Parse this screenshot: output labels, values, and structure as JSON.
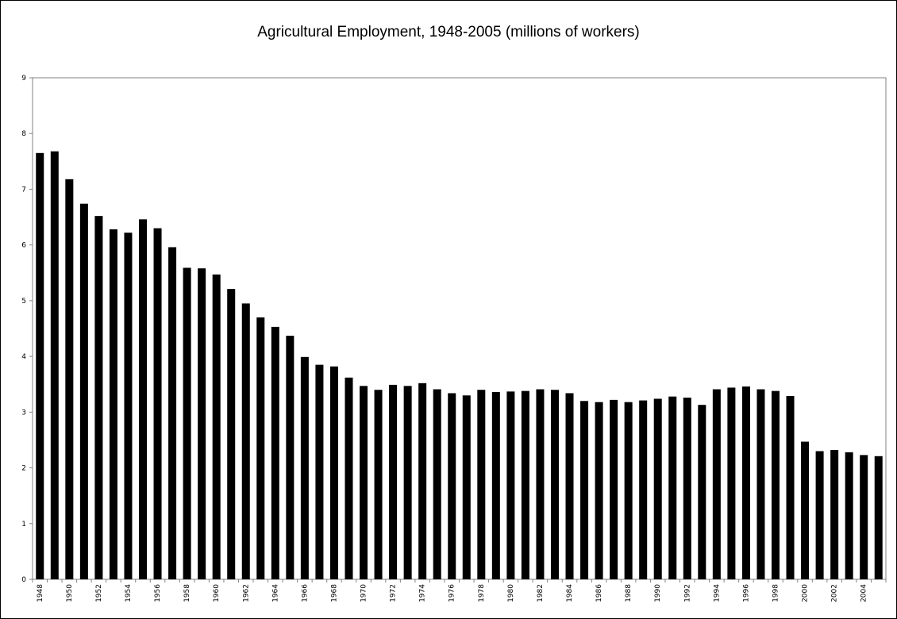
{
  "chart_data": {
    "type": "bar",
    "title": "Agricultural Employment, 1948-2005 (millions of workers)",
    "xlabel": "",
    "ylabel": "",
    "ylim": [
      0,
      9
    ],
    "yticks": [
      0,
      1,
      2,
      3,
      4,
      5,
      6,
      7,
      8,
      9
    ],
    "grid": false,
    "legend": "none",
    "bar_color": "#000000",
    "axis_color": "#808080",
    "categories": [
      1948,
      1949,
      1950,
      1951,
      1952,
      1953,
      1954,
      1955,
      1956,
      1957,
      1958,
      1959,
      1960,
      1961,
      1962,
      1963,
      1964,
      1965,
      1966,
      1967,
      1968,
      1969,
      1970,
      1971,
      1972,
      1973,
      1974,
      1975,
      1976,
      1977,
      1978,
      1979,
      1980,
      1981,
      1982,
      1983,
      1984,
      1985,
      1986,
      1987,
      1988,
      1989,
      1990,
      1991,
      1992,
      1993,
      1994,
      1995,
      1996,
      1997,
      1998,
      1999,
      2000,
      2001,
      2002,
      2003,
      2004,
      2005
    ],
    "xtick_labels": [
      1948,
      1950,
      1952,
      1954,
      1956,
      1958,
      1960,
      1962,
      1964,
      1966,
      1968,
      1970,
      1972,
      1974,
      1976,
      1978,
      1980,
      1982,
      1984,
      1986,
      1988,
      1990,
      1992,
      1994,
      1996,
      1998,
      2000,
      2002,
      2004
    ],
    "values": [
      7.65,
      7.68,
      7.18,
      6.74,
      6.52,
      6.28,
      6.22,
      6.46,
      6.3,
      5.96,
      5.59,
      5.58,
      5.47,
      5.21,
      4.95,
      4.7,
      4.53,
      4.37,
      3.99,
      3.85,
      3.82,
      3.62,
      3.47,
      3.4,
      3.49,
      3.47,
      3.52,
      3.41,
      3.34,
      3.3,
      3.4,
      3.36,
      3.37,
      3.38,
      3.41,
      3.4,
      3.34,
      3.2,
      3.18,
      3.22,
      3.18,
      3.21,
      3.24,
      3.28,
      3.26,
      3.13,
      3.41,
      3.44,
      3.46,
      3.41,
      3.38,
      3.29,
      2.47,
      2.3,
      2.32,
      2.28,
      2.23,
      2.21
    ]
  }
}
